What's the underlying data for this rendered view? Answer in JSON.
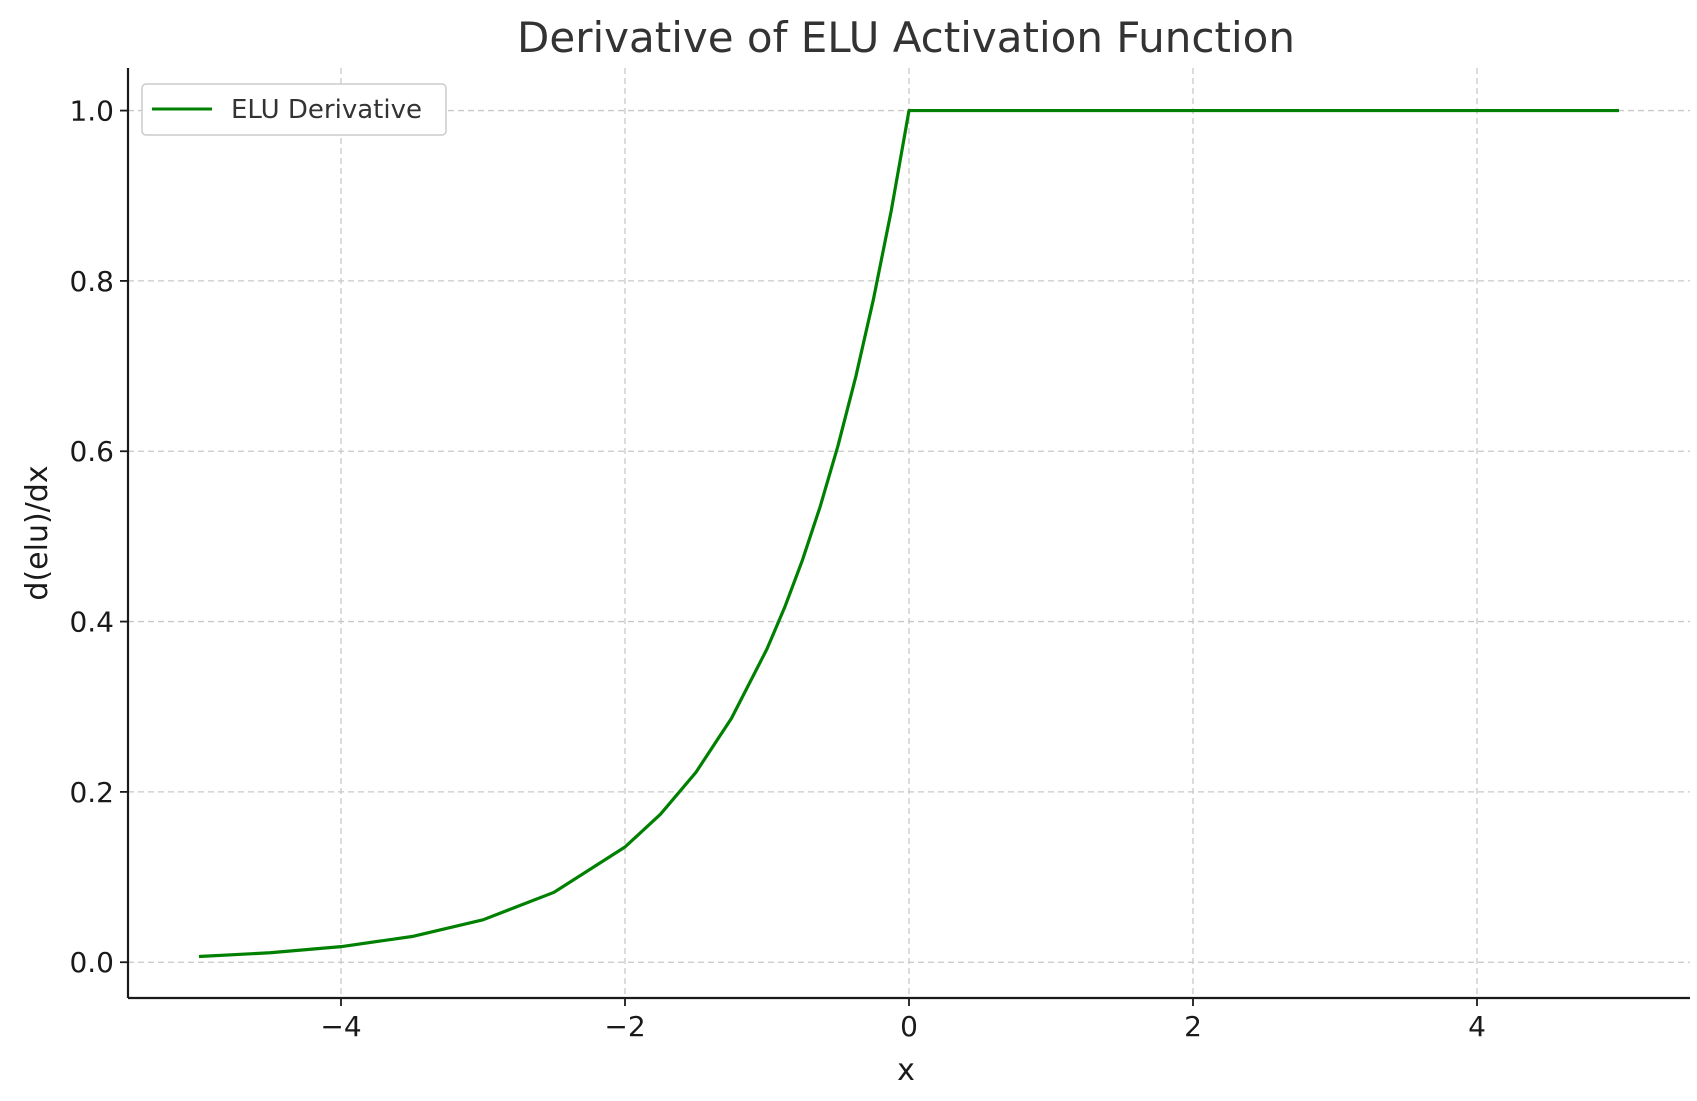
{
  "chart_data": {
    "type": "line",
    "title": "Derivative of ELU Activation Function",
    "xlabel": "x",
    "ylabel": "d(elu)/dx",
    "xlim": [
      -5.5,
      5.5
    ],
    "ylim": [
      -0.042,
      1.05
    ],
    "xticks": [
      -4,
      -2,
      0,
      2,
      4
    ],
    "xtick_labels": [
      "−4",
      "−2",
      "0",
      "2",
      "4"
    ],
    "yticks": [
      0.0,
      0.2,
      0.4,
      0.6,
      0.8,
      1.0
    ],
    "ytick_labels": [
      "0.0",
      "0.2",
      "0.4",
      "0.6",
      "0.8",
      "1.0"
    ],
    "grid": true,
    "legend_position": "top-left",
    "series": [
      {
        "name": "ELU Derivative",
        "color": "#008000",
        "x": [
          -5.0,
          -4.5,
          -4.0,
          -3.5,
          -3.0,
          -2.5,
          -2.0,
          -1.75,
          -1.5,
          -1.25,
          -1.0,
          -0.875,
          -0.75,
          -0.625,
          -0.5,
          -0.375,
          -0.25,
          -0.125,
          0.0,
          1.0,
          2.0,
          3.0,
          4.0,
          5.0
        ],
        "y": [
          0.0067,
          0.0111,
          0.0183,
          0.0302,
          0.0498,
          0.0821,
          0.1353,
          0.1738,
          0.2231,
          0.2865,
          0.3679,
          0.4169,
          0.4724,
          0.5353,
          0.6065,
          0.6873,
          0.7788,
          0.8825,
          1.0,
          1.0,
          1.0,
          1.0,
          1.0,
          1.0
        ]
      }
    ]
  }
}
